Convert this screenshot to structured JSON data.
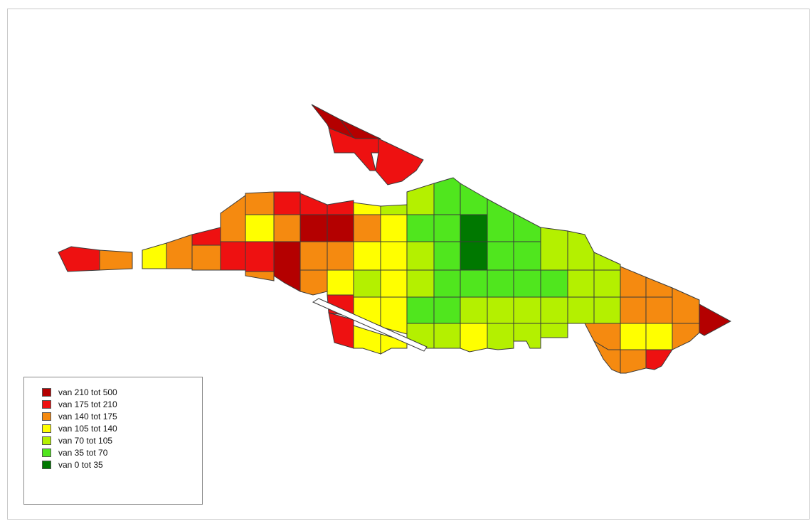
{
  "legend": {
    "items": [
      {
        "label": "van 210 tot 500",
        "color": "#b40000"
      },
      {
        "label": "van 175 tot 210",
        "color": "#ee1111"
      },
      {
        "label": "van 140 tot 175",
        "color": "#f58a10"
      },
      {
        "label": "van 105 tot 140",
        "color": "#ffff00"
      },
      {
        "label": "van 70 tot 105",
        "color": "#b4f000"
      },
      {
        "label": "van 35 tot 70",
        "color": "#50e61e"
      },
      {
        "label": "van 0 tot 35",
        "color": "#007800"
      }
    ]
  }
}
